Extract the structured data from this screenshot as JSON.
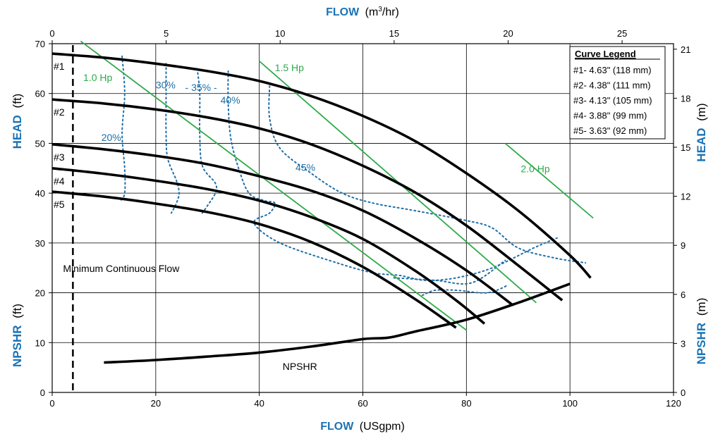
{
  "chart_data": {
    "type": "line",
    "title": "",
    "x_axis_bottom": {
      "label": "FLOW",
      "unit": "(USgpm)",
      "range": [
        0,
        120
      ],
      "ticks": [
        "0",
        "20",
        "40",
        "60",
        "80",
        "100",
        "120"
      ]
    },
    "x_axis_top": {
      "label": "FLOW",
      "unit_prefix": "(m",
      "unit_sup": "3",
      "unit_suffix": "/hr)",
      "range_usgpm_per_m3hr": 4.4029,
      "ticks": [
        "0",
        "5",
        "10",
        "15",
        "20",
        "25"
      ]
    },
    "y_axis_left": {
      "head_label": "HEAD",
      "head_unit": "(ft)",
      "npshr_label": "NPSHR",
      "npshr_unit": "(ft)",
      "range": [
        0,
        70
      ],
      "ticks": [
        "0",
        "10",
        "20",
        "30",
        "40",
        "50",
        "60",
        "70"
      ]
    },
    "y_axis_right": {
      "head_label": "HEAD",
      "head_unit": "(m)",
      "npshr_label": "NPSHR",
      "npshr_unit": "(m)",
      "ft_per_m": 3.2808,
      "ticks": [
        "0",
        "3",
        "6",
        "9",
        "12",
        "15",
        "18",
        "21"
      ]
    },
    "grid": true,
    "series": [
      {
        "name": "#1",
        "x": [
          0,
          10,
          20,
          30,
          40,
          50,
          60,
          70,
          80,
          90,
          100,
          104
        ],
        "y": [
          68,
          67.2,
          66.0,
          64.5,
          62.5,
          59.5,
          55.5,
          50.5,
          44.0,
          36.5,
          27.5,
          23
        ]
      },
      {
        "name": "#2",
        "x": [
          0,
          10,
          20,
          30,
          40,
          50,
          60,
          70,
          80,
          90,
          98.5
        ],
        "y": [
          58.8,
          58.0,
          56.8,
          55.2,
          53.0,
          49.8,
          45.5,
          40.2,
          33.5,
          25.5,
          18.5
        ]
      },
      {
        "name": "#3",
        "x": [
          0,
          10,
          20,
          30,
          40,
          50,
          60,
          70,
          80,
          89
        ],
        "y": [
          49.8,
          48.8,
          47.5,
          45.8,
          43.4,
          40.5,
          36.5,
          31.0,
          24.5,
          17.5
        ]
      },
      {
        "name": "#4",
        "x": [
          0,
          10,
          20,
          30,
          40,
          50,
          60,
          70,
          78,
          83.5
        ],
        "y": [
          45.0,
          43.9,
          42.5,
          40.8,
          38.5,
          35.2,
          30.8,
          24.5,
          18.5,
          13.8
        ]
      },
      {
        "name": "#5",
        "x": [
          0,
          10,
          20,
          30,
          40,
          50,
          60,
          70,
          78
        ],
        "y": [
          40.3,
          39.3,
          37.9,
          36.2,
          33.8,
          30.2,
          25.2,
          18.8,
          13.0
        ]
      }
    ],
    "npshr": {
      "name": "NPSHR",
      "x": [
        10,
        20,
        30,
        40,
        50,
        60,
        65,
        70,
        80,
        90,
        100
      ],
      "y": [
        6.0,
        6.5,
        7.2,
        8.0,
        9.2,
        10.7,
        11.0,
        12.2,
        14.6,
        18.0,
        21.8
      ]
    },
    "horsepower": [
      {
        "name": "1.0 Hp",
        "x": [
          5.5,
          80
        ],
        "y": [
          70.5,
          12.5
        ]
      },
      {
        "name": "1.5 Hp",
        "x": [
          40,
          93.5
        ],
        "y": [
          66.5,
          18.0
        ]
      },
      {
        "name": "2.0 Hp",
        "x": [
          87.5,
          104.5
        ],
        "y": [
          50.0,
          35.0
        ]
      }
    ],
    "efficiency": [
      {
        "name": "20%",
        "x": [
          13.5,
          14.0,
          13.5,
          14.0,
          14.0,
          13.2
        ],
        "y": [
          67.5,
          60.0,
          52.0,
          45.0,
          40.0,
          38.5
        ]
      },
      {
        "name": "30%",
        "x": [
          22.0,
          22.0,
          22.0,
          22.3,
          24.0,
          24.5,
          24.0,
          23.0
        ],
        "y": [
          66.0,
          60.0,
          52.0,
          47.0,
          42.5,
          40.0,
          38.0,
          36.0
        ]
      },
      {
        "name": "35%",
        "x": [
          28.0,
          28.5,
          28.5,
          29.0,
          31.5,
          31.5,
          30.0,
          29.0
        ],
        "y": [
          65.0,
          60.0,
          52.0,
          45.5,
          42.0,
          40.0,
          37.5,
          36.0
        ]
      },
      {
        "name": "40%",
        "x": [
          34.0,
          34.0,
          34.5,
          36.0,
          38.0,
          41.0,
          43.0,
          42.0,
          39.0,
          44.0,
          55.0,
          62.0,
          67.0,
          72.0,
          78.0,
          85.0,
          93.0,
          97.5
        ],
        "y": [
          64.5,
          58.0,
          51.0,
          45.0,
          40.0,
          38.5,
          38.0,
          36.0,
          34.0,
          30.0,
          26.0,
          24.0,
          23.5,
          22.5,
          23.0,
          25.0,
          29.0,
          31.0
        ]
      },
      {
        "name": "45%",
        "x": [
          42.0,
          42.0,
          44.0,
          50.0,
          56.0,
          62.0,
          70.0,
          80.0,
          85.0,
          90.0,
          97.0,
          103.0
        ],
        "y": [
          61.5,
          55.0,
          49.0,
          44.0,
          40.0,
          38.0,
          36.5,
          34.5,
          33.0,
          29.0,
          27.0,
          26.0
        ]
      },
      {
        "name": "",
        "x": [
          71.5,
          74.0,
          78.0,
          84.0,
          88.0
        ],
        "y": [
          19.5,
          20.5,
          20.5,
          20.0,
          21.5
        ]
      },
      {
        "name": "",
        "x": [
          66.0,
          74.0,
          81.0,
          87.5
        ],
        "y": [
          23.0,
          22.5,
          22.0,
          26.5
        ]
      }
    ],
    "min_flow": {
      "label": "Minimum Continuous Flow",
      "x": 4.0
    },
    "legend": {
      "title": "Curve Legend",
      "entries": [
        "#1- 4.63\" (118 mm)",
        "#2- 4.38\" (111 mm)",
        "#3- 4.13\" (105 mm)",
        "#4- 3.88\" (99 mm)",
        "#5- 3.63\" (92 mm)"
      ],
      "placement": "top-right"
    },
    "colors": {
      "pump": "#000000",
      "hp": "#2eaa4a",
      "eff": "#1f6fa8",
      "axis_title": "#1a73b5",
      "grid": "#000000"
    }
  }
}
